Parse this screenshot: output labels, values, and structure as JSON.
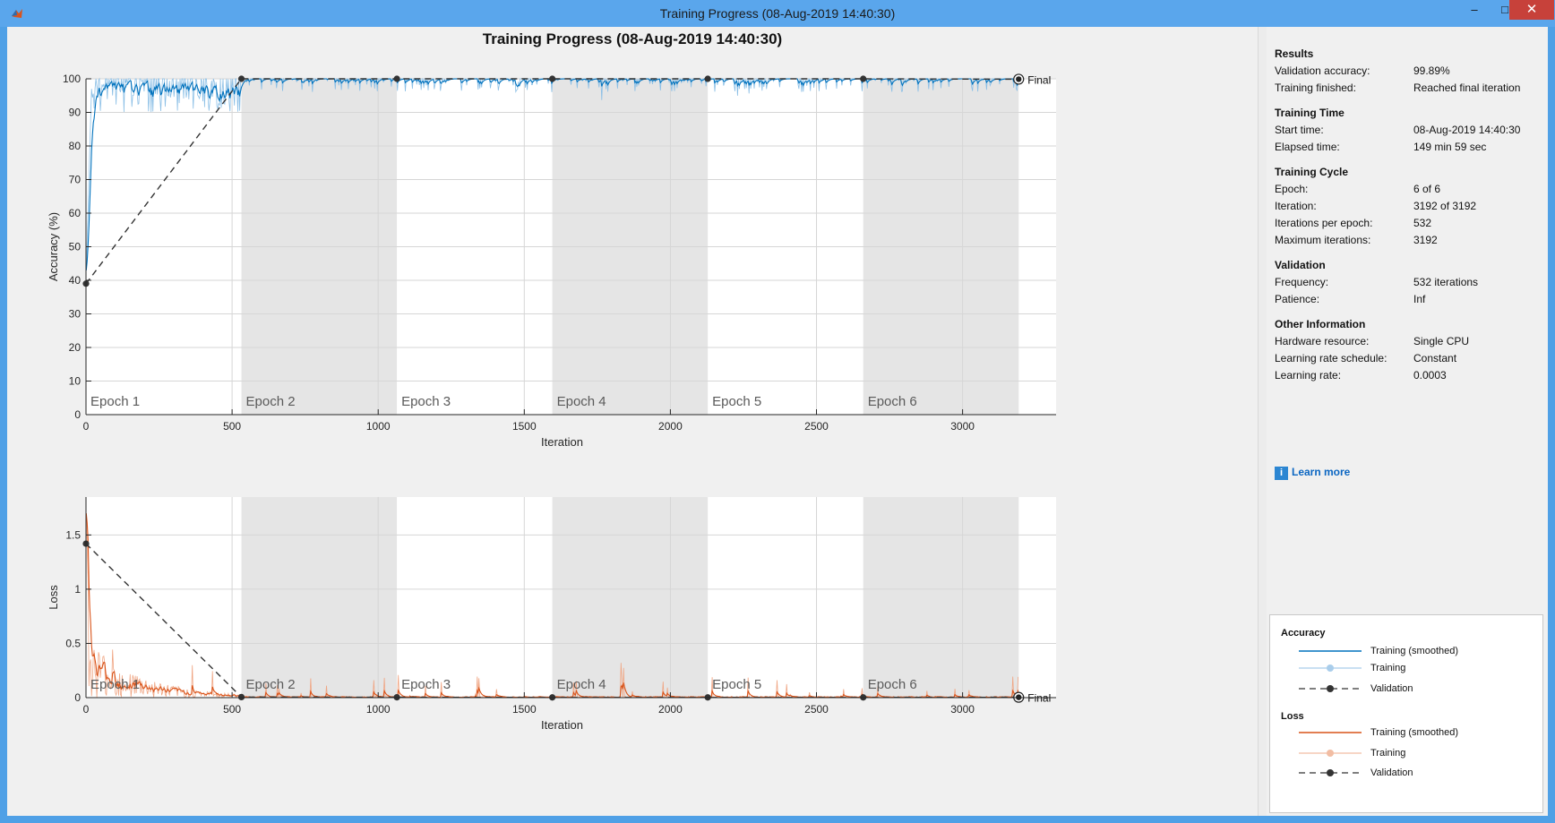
{
  "window": {
    "title": "Training Progress (08-Aug-2019 14:40:30)",
    "min_label": "–",
    "max_label": "□",
    "close_label": "✕"
  },
  "plot": {
    "title": "Training Progress (08-Aug-2019 14:40:30)",
    "epoch_labels": [
      "Epoch 1",
      "Epoch 2",
      "Epoch 3",
      "Epoch 4",
      "Epoch 5",
      "Epoch 6"
    ],
    "final_label": "Final",
    "colors": {
      "accuracy": "#0072bd",
      "loss": "#d95319",
      "validation": "#333333",
      "epoch_shade": "#e5e5e5"
    }
  },
  "chart_data": [
    {
      "type": "line",
      "title": "",
      "xlabel": "Iteration",
      "ylabel": "Accuracy (%)",
      "xlim": [
        0,
        3320
      ],
      "ylim": [
        0,
        100
      ],
      "xticks": [
        0,
        500,
        1000,
        1500,
        2000,
        2500,
        3000
      ],
      "yticks": [
        0,
        10,
        20,
        30,
        40,
        50,
        60,
        70,
        80,
        90,
        100
      ],
      "epoch_boundaries": [
        0,
        532,
        1064,
        1596,
        2128,
        2660,
        3192
      ],
      "series": [
        {
          "name": "Validation",
          "x": [
            0,
            532,
            1064,
            1596,
            2128,
            2660,
            3192
          ],
          "y": [
            39,
            100,
            100,
            100,
            100,
            100,
            99.89
          ]
        }
      ]
    },
    {
      "type": "line",
      "title": "",
      "xlabel": "Iteration",
      "ylabel": "Loss",
      "xlim": [
        0,
        3320
      ],
      "ylim": [
        0,
        1.85
      ],
      "xticks": [
        0,
        500,
        1000,
        1500,
        2000,
        2500,
        3000
      ],
      "yticks": [
        0,
        0.5,
        1,
        1.5
      ],
      "epoch_boundaries": [
        0,
        532,
        1064,
        1596,
        2128,
        2660,
        3192
      ],
      "series": [
        {
          "name": "Validation",
          "x": [
            0,
            532,
            1064,
            1596,
            2128,
            2660,
            3192
          ],
          "y": [
            1.42,
            0.005,
            0.003,
            0.002,
            0.002,
            0.002,
            0.003
          ]
        }
      ]
    }
  ],
  "results": {
    "heading": "Results",
    "rows": [
      {
        "label": "Validation accuracy:",
        "value": "99.89%"
      },
      {
        "label": "Training finished:",
        "value": "Reached final iteration"
      }
    ]
  },
  "training_time": {
    "heading": "Training Time",
    "rows": [
      {
        "label": "Start time:",
        "value": "08-Aug-2019 14:40:30"
      },
      {
        "label": "Elapsed time:",
        "value": "149 min 59 sec"
      }
    ]
  },
  "training_cycle": {
    "heading": "Training Cycle",
    "rows": [
      {
        "label": "Epoch:",
        "value": "6 of 6"
      },
      {
        "label": "Iteration:",
        "value": "3192 of 3192"
      },
      {
        "label": "Iterations per epoch:",
        "value": "532"
      },
      {
        "label": "Maximum iterations:",
        "value": "3192"
      }
    ]
  },
  "validation": {
    "heading": "Validation",
    "rows": [
      {
        "label": "Frequency:",
        "value": "532 iterations"
      },
      {
        "label": "Patience:",
        "value": "Inf"
      }
    ]
  },
  "other_info": {
    "heading": "Other Information",
    "rows": [
      {
        "label": "Hardware resource:",
        "value": "Single CPU"
      },
      {
        "label": "Learning rate schedule:",
        "value": "Constant"
      },
      {
        "label": "Learning rate:",
        "value": "0.0003"
      }
    ]
  },
  "learn_more": {
    "label": "Learn more",
    "icon": "info-icon"
  },
  "legend": {
    "accuracy_heading": "Accuracy",
    "loss_heading": "Loss",
    "accuracy_smoothed": "Training (smoothed)",
    "accuracy_training": "Training",
    "accuracy_validation": "Validation",
    "loss_smoothed": "Training (smoothed)",
    "loss_training": "Training",
    "loss_validation": "Validation"
  }
}
